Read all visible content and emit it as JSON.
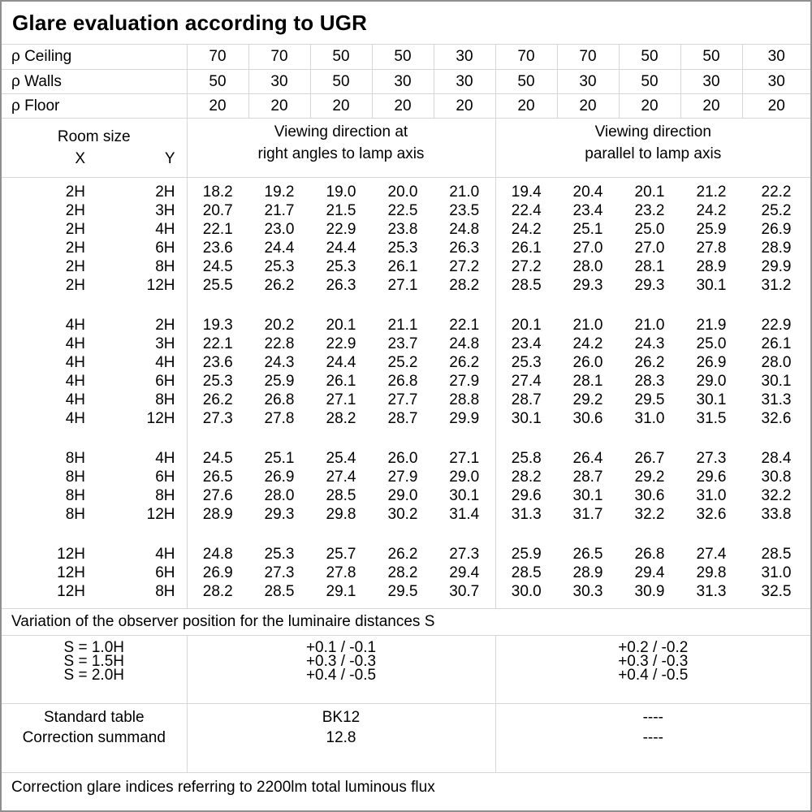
{
  "title": "Glare evaluation according to UGR",
  "reflectance": {
    "rows": [
      {
        "label": "ρ Ceiling",
        "values": [
          "70",
          "70",
          "50",
          "50",
          "30",
          "70",
          "70",
          "50",
          "50",
          "30"
        ]
      },
      {
        "label": "ρ Walls",
        "values": [
          "50",
          "30",
          "50",
          "30",
          "30",
          "50",
          "30",
          "50",
          "30",
          "30"
        ]
      },
      {
        "label": "ρ Floor",
        "values": [
          "20",
          "20",
          "20",
          "20",
          "20",
          "20",
          "20",
          "20",
          "20",
          "20"
        ]
      }
    ]
  },
  "header": {
    "room_size_label": "Room size",
    "x_label": "X",
    "y_label": "Y",
    "right_angles_line1": "Viewing direction at",
    "right_angles_line2": "right angles to lamp axis",
    "parallel_line1": "Viewing direction",
    "parallel_line2": "parallel to lamp axis"
  },
  "groups": [
    {
      "rows": [
        {
          "x": "2H",
          "y": "2H",
          "right_angles": [
            "18.2",
            "19.2",
            "19.0",
            "20.0",
            "21.0"
          ],
          "parallel": [
            "19.4",
            "20.4",
            "20.1",
            "21.2",
            "22.2"
          ]
        },
        {
          "x": "2H",
          "y": "3H",
          "right_angles": [
            "20.7",
            "21.7",
            "21.5",
            "22.5",
            "23.5"
          ],
          "parallel": [
            "22.4",
            "23.4",
            "23.2",
            "24.2",
            "25.2"
          ]
        },
        {
          "x": "2H",
          "y": "4H",
          "right_angles": [
            "22.1",
            "23.0",
            "22.9",
            "23.8",
            "24.8"
          ],
          "parallel": [
            "24.2",
            "25.1",
            "25.0",
            "25.9",
            "26.9"
          ]
        },
        {
          "x": "2H",
          "y": "6H",
          "right_angles": [
            "23.6",
            "24.4",
            "24.4",
            "25.3",
            "26.3"
          ],
          "parallel": [
            "26.1",
            "27.0",
            "27.0",
            "27.8",
            "28.9"
          ]
        },
        {
          "x": "2H",
          "y": "8H",
          "right_angles": [
            "24.5",
            "25.3",
            "25.3",
            "26.1",
            "27.2"
          ],
          "parallel": [
            "27.2",
            "28.0",
            "28.1",
            "28.9",
            "29.9"
          ]
        },
        {
          "x": "2H",
          "y": "12H",
          "right_angles": [
            "25.5",
            "26.2",
            "26.3",
            "27.1",
            "28.2"
          ],
          "parallel": [
            "28.5",
            "29.3",
            "29.3",
            "30.1",
            "31.2"
          ]
        }
      ]
    },
    {
      "rows": [
        {
          "x": "4H",
          "y": "2H",
          "right_angles": [
            "19.3",
            "20.2",
            "20.1",
            "21.1",
            "22.1"
          ],
          "parallel": [
            "20.1",
            "21.0",
            "21.0",
            "21.9",
            "22.9"
          ]
        },
        {
          "x": "4H",
          "y": "3H",
          "right_angles": [
            "22.1",
            "22.8",
            "22.9",
            "23.7",
            "24.8"
          ],
          "parallel": [
            "23.4",
            "24.2",
            "24.3",
            "25.0",
            "26.1"
          ]
        },
        {
          "x": "4H",
          "y": "4H",
          "right_angles": [
            "23.6",
            "24.3",
            "24.4",
            "25.2",
            "26.2"
          ],
          "parallel": [
            "25.3",
            "26.0",
            "26.2",
            "26.9",
            "28.0"
          ]
        },
        {
          "x": "4H",
          "y": "6H",
          "right_angles": [
            "25.3",
            "25.9",
            "26.1",
            "26.8",
            "27.9"
          ],
          "parallel": [
            "27.4",
            "28.1",
            "28.3",
            "29.0",
            "30.1"
          ]
        },
        {
          "x": "4H",
          "y": "8H",
          "right_angles": [
            "26.2",
            "26.8",
            "27.1",
            "27.7",
            "28.8"
          ],
          "parallel": [
            "28.7",
            "29.2",
            "29.5",
            "30.1",
            "31.3"
          ]
        },
        {
          "x": "4H",
          "y": "12H",
          "right_angles": [
            "27.3",
            "27.8",
            "28.2",
            "28.7",
            "29.9"
          ],
          "parallel": [
            "30.1",
            "30.6",
            "31.0",
            "31.5",
            "32.6"
          ]
        }
      ]
    },
    {
      "rows": [
        {
          "x": "8H",
          "y": "4H",
          "right_angles": [
            "24.5",
            "25.1",
            "25.4",
            "26.0",
            "27.1"
          ],
          "parallel": [
            "25.8",
            "26.4",
            "26.7",
            "27.3",
            "28.4"
          ]
        },
        {
          "x": "8H",
          "y": "6H",
          "right_angles": [
            "26.5",
            "26.9",
            "27.4",
            "27.9",
            "29.0"
          ],
          "parallel": [
            "28.2",
            "28.7",
            "29.2",
            "29.6",
            "30.8"
          ]
        },
        {
          "x": "8H",
          "y": "8H",
          "right_angles": [
            "27.6",
            "28.0",
            "28.5",
            "29.0",
            "30.1"
          ],
          "parallel": [
            "29.6",
            "30.1",
            "30.6",
            "31.0",
            "32.2"
          ]
        },
        {
          "x": "8H",
          "y": "12H",
          "right_angles": [
            "28.9",
            "29.3",
            "29.8",
            "30.2",
            "31.4"
          ],
          "parallel": [
            "31.3",
            "31.7",
            "32.2",
            "32.6",
            "33.8"
          ]
        }
      ]
    },
    {
      "rows": [
        {
          "x": "12H",
          "y": "4H",
          "right_angles": [
            "24.8",
            "25.3",
            "25.7",
            "26.2",
            "27.3"
          ],
          "parallel": [
            "25.9",
            "26.5",
            "26.8",
            "27.4",
            "28.5"
          ]
        },
        {
          "x": "12H",
          "y": "6H",
          "right_angles": [
            "26.9",
            "27.3",
            "27.8",
            "28.2",
            "29.4"
          ],
          "parallel": [
            "28.5",
            "28.9",
            "29.4",
            "29.8",
            "31.0"
          ]
        },
        {
          "x": "12H",
          "y": "8H",
          "right_angles": [
            "28.2",
            "28.5",
            "29.1",
            "29.5",
            "30.7"
          ],
          "parallel": [
            "30.0",
            "30.3",
            "30.9",
            "31.3",
            "32.5"
          ]
        }
      ]
    }
  ],
  "variation_note": "Variation of the observer position for the luminaire distances S",
  "observer_variation": {
    "rows": [
      {
        "label": "S = 1.0H",
        "right_angles": "+0.1 / -0.1",
        "parallel": "+0.2 / -0.2"
      },
      {
        "label": "S = 1.5H",
        "right_angles": "+0.3 / -0.3",
        "parallel": "+0.3 / -0.3"
      },
      {
        "label": "S = 2.0H",
        "right_angles": "+0.4 / -0.5",
        "parallel": "+0.4 / -0.5"
      }
    ]
  },
  "summary": {
    "rows": [
      {
        "label": "Standard table",
        "right_angles": "BK12",
        "parallel": "----"
      },
      {
        "label": "Correction summand",
        "right_angles": "12.8",
        "parallel": "----"
      }
    ]
  },
  "footer_note": "Correction glare indices referring to 2200lm total luminous flux",
  "colors": {
    "background": "#ffffff",
    "text": "#000000",
    "grid_line": "#d6d6d6",
    "outer_border": "#8f8f8f"
  }
}
